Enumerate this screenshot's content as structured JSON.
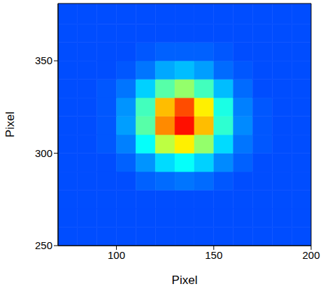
{
  "chart_data": {
    "type": "heatmap",
    "xlabel": "Pixel",
    "ylabel": "Pixel",
    "xlim": [
      70,
      200
    ],
    "ylim": [
      250,
      381
    ],
    "xticks": [
      100,
      150,
      200
    ],
    "yticks": [
      250,
      300,
      350
    ],
    "heatmap": {
      "x_bins": [
        70,
        80,
        90,
        100,
        110,
        120,
        130,
        140,
        150,
        160,
        170,
        180,
        190,
        200
      ],
      "y_bins": [
        250,
        260,
        270,
        280,
        290,
        300,
        310,
        320,
        330,
        340,
        350,
        360,
        370,
        381
      ],
      "zlim": [
        0,
        1
      ],
      "values": [
        [
          0.2,
          0.2,
          0.2,
          0.2,
          0.2,
          0.2,
          0.2,
          0.2,
          0.2,
          0.2,
          0.2,
          0.2,
          0.2
        ],
        [
          0.2,
          0.2,
          0.2,
          0.2,
          0.2,
          0.2,
          0.2,
          0.2,
          0.2,
          0.2,
          0.2,
          0.2,
          0.2
        ],
        [
          0.2,
          0.2,
          0.2,
          0.2,
          0.2,
          0.2,
          0.2,
          0.2,
          0.2,
          0.2,
          0.2,
          0.2,
          0.2
        ],
        [
          0.2,
          0.2,
          0.2,
          0.2,
          0.22,
          0.23,
          0.24,
          0.23,
          0.21,
          0.2,
          0.2,
          0.2,
          0.2
        ],
        [
          0.2,
          0.2,
          0.2,
          0.22,
          0.27,
          0.34,
          0.38,
          0.33,
          0.26,
          0.22,
          0.2,
          0.2,
          0.2
        ],
        [
          0.2,
          0.2,
          0.21,
          0.25,
          0.38,
          0.56,
          0.64,
          0.52,
          0.34,
          0.24,
          0.21,
          0.2,
          0.2
        ],
        [
          0.2,
          0.2,
          0.21,
          0.28,
          0.46,
          0.74,
          0.86,
          0.69,
          0.42,
          0.26,
          0.21,
          0.2,
          0.2
        ],
        [
          0.2,
          0.2,
          0.21,
          0.27,
          0.44,
          0.69,
          0.8,
          0.64,
          0.4,
          0.25,
          0.21,
          0.2,
          0.2
        ],
        [
          0.2,
          0.2,
          0.21,
          0.24,
          0.33,
          0.46,
          0.52,
          0.44,
          0.31,
          0.23,
          0.2,
          0.2,
          0.2
        ],
        [
          0.2,
          0.2,
          0.2,
          0.21,
          0.24,
          0.29,
          0.31,
          0.28,
          0.23,
          0.21,
          0.2,
          0.2,
          0.2
        ],
        [
          0.2,
          0.2,
          0.2,
          0.2,
          0.21,
          0.22,
          0.22,
          0.22,
          0.21,
          0.2,
          0.2,
          0.2,
          0.2
        ],
        [
          0.2,
          0.2,
          0.2,
          0.2,
          0.2,
          0.2,
          0.2,
          0.2,
          0.2,
          0.2,
          0.2,
          0.2,
          0.2
        ],
        [
          0.2,
          0.2,
          0.2,
          0.2,
          0.2,
          0.2,
          0.2,
          0.2,
          0.2,
          0.2,
          0.2,
          0.2,
          0.2
        ]
      ]
    }
  }
}
